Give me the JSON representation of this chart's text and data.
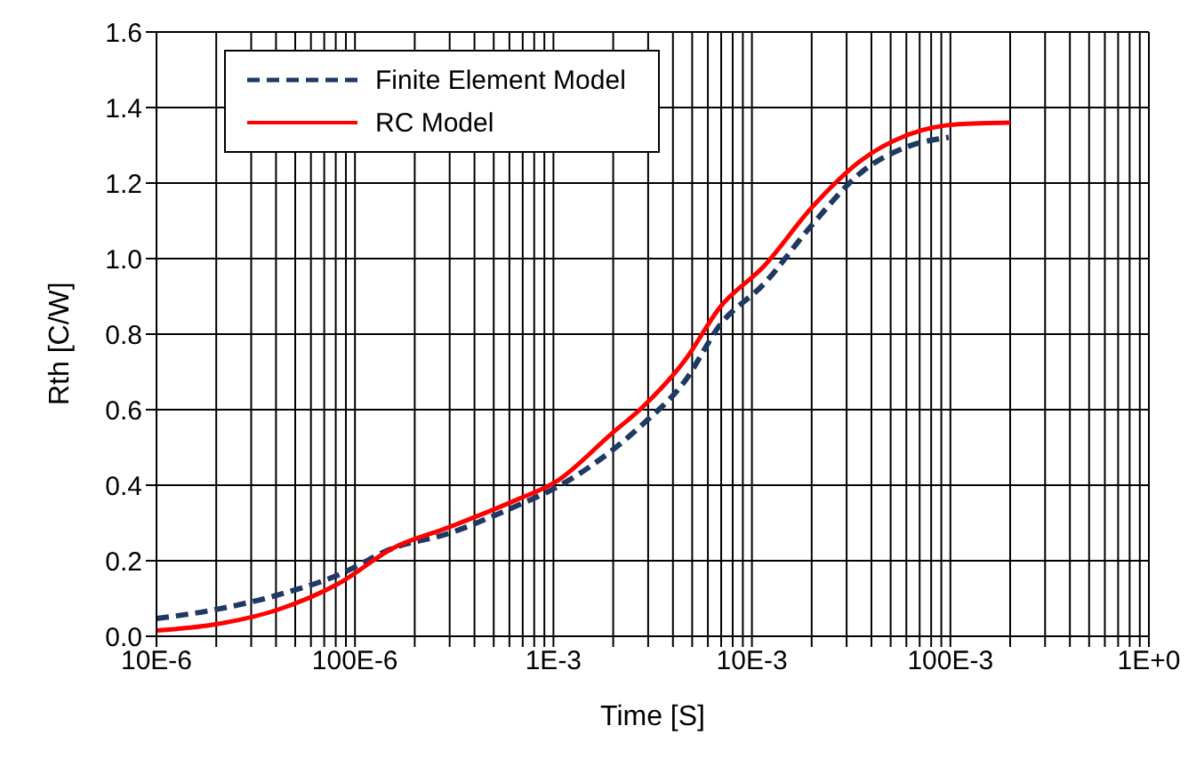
{
  "chart_data": {
    "type": "line",
    "xlabel": "Time [S]",
    "ylabel": "Rth [C/W]",
    "log": "x",
    "grid": true,
    "legend": "top left",
    "marker": "none",
    "xlim": [
      1e-05,
      1
    ],
    "xticks": [
      {
        "value": 1e-05,
        "label": "10E-6"
      },
      {
        "value": 2e-05,
        "label": null
      },
      {
        "value": 3e-05,
        "label": null
      },
      {
        "value": 4e-05,
        "label": null
      },
      {
        "value": 5e-05,
        "label": null
      },
      {
        "value": 6e-05,
        "label": null
      },
      {
        "value": 7e-05,
        "label": null
      },
      {
        "value": 8e-05,
        "label": null
      },
      {
        "value": 9e-05,
        "label": null
      },
      {
        "value": 0.0001,
        "label": "100E-6"
      },
      {
        "value": 0.0002,
        "label": null
      },
      {
        "value": 0.0003,
        "label": null
      },
      {
        "value": 0.0004,
        "label": null
      },
      {
        "value": 0.0005,
        "label": null
      },
      {
        "value": 0.0006,
        "label": null
      },
      {
        "value": 0.0007,
        "label": null
      },
      {
        "value": 0.0008,
        "label": null
      },
      {
        "value": 0.0009,
        "label": null
      },
      {
        "value": 0.001,
        "label": "1E-3"
      },
      {
        "value": 0.002,
        "label": null
      },
      {
        "value": 0.003,
        "label": null
      },
      {
        "value": 0.004,
        "label": null
      },
      {
        "value": 0.005,
        "label": null
      },
      {
        "value": 0.006,
        "label": null
      },
      {
        "value": 0.007,
        "label": null
      },
      {
        "value": 0.008,
        "label": null
      },
      {
        "value": 0.009,
        "label": null
      },
      {
        "value": 0.01,
        "label": "10E-3"
      },
      {
        "value": 0.02,
        "label": null
      },
      {
        "value": 0.03,
        "label": null
      },
      {
        "value": 0.04,
        "label": null
      },
      {
        "value": 0.05,
        "label": null
      },
      {
        "value": 0.06,
        "label": null
      },
      {
        "value": 0.07,
        "label": null
      },
      {
        "value": 0.08,
        "label": null
      },
      {
        "value": 0.09,
        "label": null
      },
      {
        "value": 0.1,
        "label": "100E-3"
      },
      {
        "value": 0.2,
        "label": null
      },
      {
        "value": 0.3,
        "label": null
      },
      {
        "value": 0.4,
        "label": null
      },
      {
        "value": 0.5,
        "label": null
      },
      {
        "value": 0.6,
        "label": null
      },
      {
        "value": 0.7,
        "label": null
      },
      {
        "value": 0.8,
        "label": null
      },
      {
        "value": 0.9,
        "label": null
      },
      {
        "value": 1,
        "label": "1E+0"
      }
    ],
    "ylim": [
      0,
      1.6
    ],
    "yticks": [
      {
        "value": 0,
        "label": "0.0"
      },
      0.2,
      0.4,
      0.6,
      0.8,
      {
        "value": 1,
        "label": "1.0"
      },
      1.2,
      1.4,
      1.6
    ],
    "series": [
      {
        "name": "Finite Element Model",
        "color": "#1f3864",
        "line_style": "dashed",
        "x": [
          1e-05,
          1.95e-05,
          4.07e-05,
          8.3e-05,
          0.000155,
          0.000295,
          0.00063,
          0.00105,
          0.00195,
          0.0028,
          0.0046,
          0.0069,
          0.0115,
          0.02,
          0.0355,
          0.062,
          0.098
        ],
        "values": [
          0.047,
          0.07,
          0.109,
          0.163,
          0.233,
          0.272,
          0.342,
          0.396,
          0.49,
          0.56,
          0.676,
          0.824,
          0.933,
          1.088,
          1.228,
          1.298,
          1.321
        ]
      },
      {
        "name": "RC Model",
        "color": "#ff0000",
        "line_style": "solid",
        "x": [
          1e-05,
          1.95e-05,
          4.07e-05,
          8.3e-05,
          0.000155,
          0.000295,
          0.00063,
          0.00105,
          0.00195,
          0.0028,
          0.0046,
          0.0069,
          0.0115,
          0.02,
          0.0355,
          0.062,
          0.11,
          0.2
        ],
        "values": [
          0.015,
          0.031,
          0.07,
          0.14,
          0.233,
          0.288,
          0.358,
          0.412,
          0.535,
          0.606,
          0.731,
          0.871,
          0.98,
          1.135,
          1.26,
          1.329,
          1.356,
          1.36
        ]
      }
    ]
  }
}
